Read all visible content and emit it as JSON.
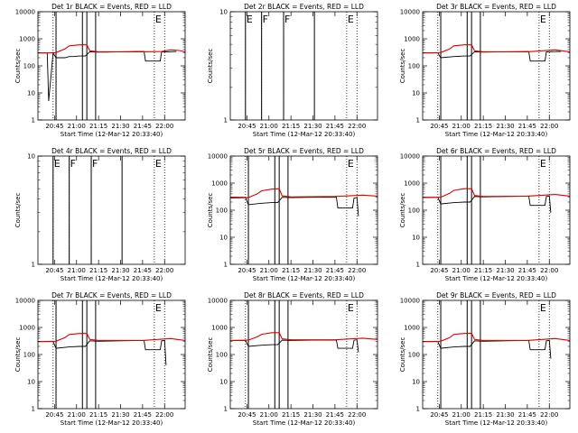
{
  "chart_data": [
    {
      "type": "line",
      "title": "Det 1r BLACK = Events, RED = LLD",
      "xlabel": "Start Time (12-Mar-12 20:33:40)",
      "ylabel": "Counts/sec",
      "scale": "log",
      "ylim": [
        1,
        10000
      ],
      "yticks": [
        "1",
        "10",
        "100",
        "1000",
        "10000"
      ],
      "xlim": [
        "20:33:40",
        "22:14:00"
      ],
      "xticks": [
        "20:45",
        "21:00",
        "21:15",
        "21:30",
        "21:45",
        "22:00"
      ],
      "solid_vlines": [
        "20:46",
        "21:04",
        "21:07",
        "21:13"
      ],
      "dotted_vlines": [
        "20:44",
        "21:53",
        "22:00"
      ],
      "flags": [
        {
          "label": "E",
          "x": "21:53"
        }
      ],
      "series": [
        {
          "color": "#000000",
          "x": [
            "20:33:40",
            "20:38",
            "20:40",
            "20:41",
            "20:44",
            "20:46",
            "20:52",
            "20:55",
            "20:58",
            "21:02",
            "21:06",
            "21:09",
            "21:15",
            "21:20",
            "21:30",
            "21:40",
            "21:46",
            "21:47",
            "21:52",
            "21:57",
            "21:58",
            "21:59",
            "22:03",
            "22:04",
            "22:08"
          ],
          "y": [
            300,
            300,
            300,
            5,
            300,
            200,
            200,
            220,
            220,
            230,
            230,
            330,
            320,
            320,
            330,
            340,
            340,
            150,
            150,
            150,
            330,
            330,
            330,
            330,
            340
          ]
        },
        {
          "color": "#dd0000",
          "x": [
            "20:33:40",
            "20:40",
            "20:46",
            "20:52",
            "20:55",
            "21:02",
            "21:07",
            "21:09",
            "21:15",
            "21:30",
            "21:45",
            "21:58",
            "22:04",
            "22:10",
            "22:14"
          ],
          "y": [
            300,
            300,
            310,
            420,
            550,
            600,
            600,
            360,
            330,
            330,
            330,
            340,
            390,
            370,
            330
          ]
        }
      ]
    },
    {
      "type": "line",
      "title": "Det 2r BLACK = Events, RED = LLD",
      "xlabel": "Start Time (12-Mar-12 20:33:40)",
      "ylabel": "Counts/sec",
      "scale": "log",
      "ylim": [
        1,
        10
      ],
      "yticks": [
        "1",
        "10"
      ],
      "xlim": [
        "20:33:40",
        "22:14:00"
      ],
      "xticks": [
        "20:45",
        "21:00",
        "21:15",
        "21:30",
        "21:45",
        "22:00"
      ],
      "solid_vlines": [
        "20:44",
        "20:55",
        "21:10",
        "21:31"
      ],
      "dotted_vlines": [
        "20:44",
        "20:55",
        "21:10",
        "21:53",
        "22:00"
      ],
      "flags": [
        {
          "label": "E",
          "x": "20:44"
        },
        {
          "label": "F",
          "x": "20:55"
        },
        {
          "label": "F",
          "x": "21:10"
        },
        {
          "label": "E",
          "x": "21:53"
        }
      ],
      "series": []
    },
    {
      "type": "line",
      "title": "Det 3r BLACK = Events, RED = LLD",
      "xlabel": "Start Time (12-Mar-12 20:33:40)",
      "ylabel": "Counts/sec",
      "scale": "log",
      "ylim": [
        1,
        10000
      ],
      "yticks": [
        "1",
        "10",
        "100",
        "1000",
        "10000"
      ],
      "xlim": [
        "20:33:40",
        "22:14:00"
      ],
      "xticks": [
        "20:45",
        "21:00",
        "21:15",
        "21:30",
        "21:45",
        "22:00"
      ],
      "solid_vlines": [
        "20:46",
        "21:04",
        "21:07",
        "21:13"
      ],
      "dotted_vlines": [
        "20:44",
        "21:53",
        "22:00"
      ],
      "flags": [
        {
          "label": "E",
          "x": "21:53"
        }
      ],
      "series": [
        {
          "color": "#000000",
          "x": [
            "20:33:40",
            "20:44",
            "20:46",
            "20:55",
            "21:02",
            "21:06",
            "21:09",
            "21:15",
            "21:30",
            "21:46",
            "21:47",
            "21:57",
            "21:58",
            "22:08"
          ],
          "y": [
            300,
            300,
            200,
            220,
            230,
            230,
            330,
            320,
            330,
            340,
            150,
            150,
            330,
            340
          ]
        },
        {
          "color": "#dd0000",
          "x": [
            "20:33:40",
            "20:46",
            "20:52",
            "20:55",
            "21:02",
            "21:07",
            "21:09",
            "21:15",
            "21:45",
            "22:04",
            "22:14"
          ],
          "y": [
            300,
            310,
            420,
            550,
            600,
            600,
            360,
            330,
            330,
            390,
            330
          ]
        }
      ]
    },
    {
      "type": "line",
      "title": "Det 4r BLACK = Events, RED = LLD",
      "xlabel": "Start Time (12-Mar-12 20:33:40)",
      "ylabel": "Counts/sec",
      "scale": "log",
      "ylim": [
        1,
        10
      ],
      "yticks": [
        "1",
        "10"
      ],
      "xlim": [
        "20:33:40",
        "22:14:00"
      ],
      "xticks": [
        "20:45",
        "21:00",
        "21:15",
        "21:30",
        "21:45",
        "22:00"
      ],
      "solid_vlines": [
        "20:44",
        "20:55",
        "21:10",
        "21:31"
      ],
      "dotted_vlines": [
        "20:44",
        "20:55",
        "21:10",
        "21:53",
        "22:00"
      ],
      "flags": [
        {
          "label": "E",
          "x": "20:44"
        },
        {
          "label": "F",
          "x": "20:55"
        },
        {
          "label": "F",
          "x": "21:10"
        },
        {
          "label": "E",
          "x": "21:53"
        }
      ],
      "series": []
    },
    {
      "type": "line",
      "title": "Det 5r BLACK = Events, RED = LLD",
      "xlabel": "Start Time (12-Mar-12 20:33:40)",
      "ylabel": "Counts/sec",
      "scale": "log",
      "ylim": [
        1,
        10000
      ],
      "yticks": [
        "1",
        "10",
        "100",
        "1000",
        "10000"
      ],
      "xlim": [
        "20:33:40",
        "22:14:00"
      ],
      "xticks": [
        "20:45",
        "21:00",
        "21:15",
        "21:30",
        "21:45",
        "22:00"
      ],
      "solid_vlines": [
        "20:46",
        "21:04",
        "21:07",
        "21:13"
      ],
      "dotted_vlines": [
        "20:44",
        "21:53",
        "22:00"
      ],
      "flags": [
        {
          "label": "E",
          "x": "21:53"
        }
      ],
      "series": [
        {
          "color": "#000000",
          "x": [
            "20:33:40",
            "20:44",
            "20:46",
            "20:55",
            "21:02",
            "21:06",
            "21:09",
            "21:15",
            "21:30",
            "21:46",
            "21:47",
            "21:57",
            "21:58",
            "22:00",
            "22:01"
          ],
          "y": [
            300,
            300,
            160,
            180,
            190,
            190,
            300,
            290,
            300,
            300,
            120,
            120,
            280,
            290,
            60
          ]
        },
        {
          "color": "#dd0000",
          "x": [
            "20:33:40",
            "20:46",
            "20:52",
            "20:55",
            "21:02",
            "21:07",
            "21:09",
            "21:15",
            "21:45",
            "22:04",
            "22:14"
          ],
          "y": [
            280,
            290,
            400,
            520,
            600,
            620,
            340,
            310,
            320,
            360,
            330
          ]
        }
      ]
    },
    {
      "type": "line",
      "title": "Det 6r BLACK = Events, RED = LLD",
      "xlabel": "Start Time (12-Mar-12 20:33:40)",
      "ylabel": "Counts/sec",
      "scale": "log",
      "ylim": [
        1,
        10000
      ],
      "yticks": [
        "1",
        "10",
        "100",
        "1000",
        "10000"
      ],
      "xlim": [
        "20:33:40",
        "22:14:00"
      ],
      "xticks": [
        "20:45",
        "21:00",
        "21:15",
        "21:30",
        "21:45",
        "22:00"
      ],
      "solid_vlines": [
        "20:46",
        "21:04",
        "21:07",
        "21:13"
      ],
      "dotted_vlines": [
        "20:44",
        "21:53",
        "22:00"
      ],
      "flags": [
        {
          "label": "E",
          "x": "21:53"
        }
      ],
      "series": [
        {
          "color": "#000000",
          "x": [
            "20:33:40",
            "20:44",
            "20:46",
            "20:55",
            "21:02",
            "21:06",
            "21:09",
            "21:15",
            "21:30",
            "21:46",
            "21:47",
            "21:57",
            "21:58",
            "22:00",
            "22:01"
          ],
          "y": [
            300,
            300,
            170,
            190,
            200,
            200,
            320,
            310,
            320,
            330,
            150,
            150,
            320,
            330,
            80
          ]
        },
        {
          "color": "#dd0000",
          "x": [
            "20:33:40",
            "20:46",
            "20:52",
            "20:55",
            "21:02",
            "21:07",
            "21:09",
            "21:15",
            "21:45",
            "22:04",
            "22:14"
          ],
          "y": [
            290,
            300,
            420,
            540,
            620,
            620,
            350,
            320,
            330,
            380,
            330
          ]
        }
      ]
    },
    {
      "type": "line",
      "title": "Det 7r BLACK = Events, RED = LLD",
      "xlabel": "Start Time (12-Mar-12 20:33:40)",
      "ylabel": "Counts/sec",
      "scale": "log",
      "ylim": [
        1,
        10000
      ],
      "yticks": [
        "1",
        "10",
        "100",
        "1000",
        "10000"
      ],
      "xlim": [
        "20:33:40",
        "22:14:00"
      ],
      "xticks": [
        "20:45",
        "21:00",
        "21:15",
        "21:30",
        "21:45",
        "22:00"
      ],
      "solid_vlines": [
        "20:46",
        "21:04",
        "21:07",
        "21:13"
      ],
      "dotted_vlines": [
        "20:44",
        "21:53",
        "22:00"
      ],
      "flags": [
        {
          "label": "E",
          "x": "21:53"
        }
      ],
      "series": [
        {
          "color": "#000000",
          "x": [
            "20:33:40",
            "20:44",
            "20:46",
            "20:55",
            "21:02",
            "21:06",
            "21:09",
            "21:15",
            "21:30",
            "21:46",
            "21:47",
            "21:57",
            "21:58",
            "22:00",
            "22:01"
          ],
          "y": [
            300,
            300,
            170,
            190,
            200,
            200,
            320,
            310,
            320,
            330,
            150,
            150,
            320,
            330,
            40
          ]
        },
        {
          "color": "#dd0000",
          "x": [
            "20:33:40",
            "20:46",
            "20:52",
            "20:55",
            "21:02",
            "21:07",
            "21:09",
            "21:15",
            "21:45",
            "22:04",
            "22:14"
          ],
          "y": [
            300,
            310,
            420,
            550,
            600,
            600,
            360,
            330,
            330,
            390,
            330
          ]
        }
      ]
    },
    {
      "type": "line",
      "title": "Det 8r BLACK = Events, RED = LLD",
      "xlabel": "Start Time (12-Mar-12 20:33:40)",
      "ylabel": "Counts/sec",
      "scale": "log",
      "ylim": [
        1,
        10000
      ],
      "yticks": [
        "1",
        "10",
        "100",
        "1000",
        "10000"
      ],
      "xlim": [
        "20:33:40",
        "22:14:00"
      ],
      "xticks": [
        "20:45",
        "21:00",
        "21:15",
        "21:30",
        "21:45",
        "22:00"
      ],
      "solid_vlines": [
        "20:46",
        "21:04",
        "21:07",
        "21:13"
      ],
      "dotted_vlines": [
        "20:44",
        "21:53",
        "22:00"
      ],
      "flags": [
        {
          "label": "E",
          "x": "21:53"
        }
      ],
      "series": [
        {
          "color": "#000000",
          "x": [
            "20:33:40",
            "20:44",
            "20:46",
            "20:55",
            "21:02",
            "21:06",
            "21:09",
            "21:15",
            "21:30",
            "21:46",
            "21:47",
            "21:57",
            "21:58",
            "22:00",
            "22:01"
          ],
          "y": [
            330,
            330,
            200,
            220,
            230,
            230,
            340,
            330,
            340,
            340,
            170,
            170,
            340,
            350,
            120
          ]
        },
        {
          "color": "#dd0000",
          "x": [
            "20:33:40",
            "20:46",
            "20:52",
            "20:55",
            "21:02",
            "21:07",
            "21:09",
            "21:15",
            "21:45",
            "22:04",
            "22:14"
          ],
          "y": [
            330,
            340,
            450,
            560,
            640,
            640,
            380,
            350,
            350,
            400,
            360
          ]
        }
      ]
    },
    {
      "type": "line",
      "title": "Det 9r BLACK = Events, RED = LLD",
      "xlabel": "Start Time (12-Mar-12 20:33:40)",
      "ylabel": "Counts/sec",
      "scale": "log",
      "ylim": [
        1,
        10000
      ],
      "yticks": [
        "1",
        "10",
        "100",
        "1000",
        "10000"
      ],
      "xlim": [
        "20:33:40",
        "22:14:00"
      ],
      "xticks": [
        "20:45",
        "21:00",
        "21:15",
        "21:30",
        "21:45",
        "22:00"
      ],
      "solid_vlines": [
        "20:46",
        "21:04",
        "21:07",
        "21:13"
      ],
      "dotted_vlines": [
        "20:44",
        "21:53",
        "22:00"
      ],
      "flags": [
        {
          "label": "E",
          "x": "21:53"
        }
      ],
      "series": [
        {
          "color": "#000000",
          "x": [
            "20:33:40",
            "20:44",
            "20:46",
            "20:55",
            "21:02",
            "21:06",
            "21:09",
            "21:15",
            "21:30",
            "21:46",
            "21:47",
            "21:57",
            "21:58",
            "22:00",
            "22:01"
          ],
          "y": [
            300,
            300,
            170,
            190,
            200,
            200,
            320,
            310,
            320,
            330,
            150,
            150,
            320,
            330,
            70
          ]
        },
        {
          "color": "#dd0000",
          "x": [
            "20:33:40",
            "20:46",
            "20:52",
            "20:55",
            "21:02",
            "21:07",
            "21:09",
            "21:15",
            "21:45",
            "22:04",
            "22:14"
          ],
          "y": [
            300,
            310,
            420,
            560,
            600,
            610,
            360,
            330,
            330,
            390,
            330
          ]
        }
      ]
    }
  ]
}
